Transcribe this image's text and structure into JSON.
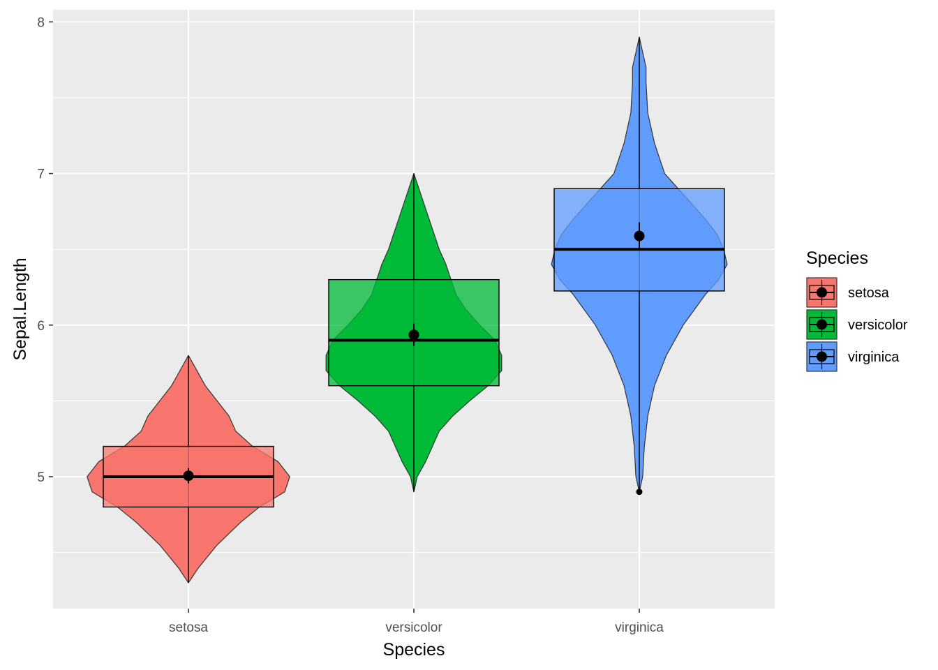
{
  "chart_data": {
    "type": "violin",
    "xlabel": "Species",
    "ylabel": "Sepal.Length",
    "categories": [
      "setosa",
      "versicolor",
      "virginica"
    ],
    "ylim": [
      4.13,
      8.08
    ],
    "y_ticks": [
      5,
      6,
      7,
      8
    ],
    "grid": true,
    "legend": {
      "title": "Species",
      "position": "right",
      "entries": [
        "setosa",
        "versicolor",
        "virginica"
      ]
    },
    "colors": {
      "setosa": "#F8766D",
      "versicolor": "#00BA38",
      "virginica": "#619CFF",
      "panel": "#EBEBEB",
      "grid": "#FFFFFF"
    },
    "series": [
      {
        "name": "setosa",
        "min": 4.3,
        "max": 5.8,
        "q1": 4.8,
        "median": 5.0,
        "q3": 5.2,
        "mean": 5.006,
        "mean_se_low": 4.956,
        "mean_se_high": 5.056,
        "density": [
          [
            4.3,
            0.0
          ],
          [
            4.4,
            0.06
          ],
          [
            4.55,
            0.17
          ],
          [
            4.7,
            0.31
          ],
          [
            4.8,
            0.42
          ],
          [
            4.9,
            0.57
          ],
          [
            5.0,
            0.6
          ],
          [
            5.1,
            0.53
          ],
          [
            5.2,
            0.38
          ],
          [
            5.3,
            0.28
          ],
          [
            5.4,
            0.24
          ],
          [
            5.5,
            0.17
          ],
          [
            5.6,
            0.1
          ],
          [
            5.7,
            0.05
          ],
          [
            5.8,
            0.0
          ]
        ]
      },
      {
        "name": "versicolor",
        "min": 4.9,
        "max": 7.0,
        "q1": 5.6,
        "median": 5.9,
        "q3": 6.3,
        "mean": 5.936,
        "mean_se_low": 5.863,
        "mean_se_high": 6.009,
        "density": [
          [
            4.9,
            0.0
          ],
          [
            5.0,
            0.02
          ],
          [
            5.1,
            0.07
          ],
          [
            5.2,
            0.11
          ],
          [
            5.3,
            0.15
          ],
          [
            5.4,
            0.23
          ],
          [
            5.5,
            0.33
          ],
          [
            5.6,
            0.44
          ],
          [
            5.7,
            0.52
          ],
          [
            5.8,
            0.52
          ],
          [
            5.9,
            0.48
          ],
          [
            6.0,
            0.39
          ],
          [
            6.1,
            0.31
          ],
          [
            6.2,
            0.25
          ],
          [
            6.3,
            0.22
          ],
          [
            6.4,
            0.19
          ],
          [
            6.5,
            0.15
          ],
          [
            6.6,
            0.12
          ],
          [
            6.7,
            0.09
          ],
          [
            6.8,
            0.06
          ],
          [
            6.9,
            0.03
          ],
          [
            7.0,
            0.0
          ]
        ]
      },
      {
        "name": "virginica",
        "min": 4.9,
        "max": 7.9,
        "q1": 6.225,
        "median": 6.5,
        "q3": 6.9,
        "mean": 6.588,
        "mean_se_low": 6.498,
        "mean_se_high": 6.678,
        "density": [
          [
            4.9,
            0.0
          ],
          [
            4.95,
            0.01
          ],
          [
            5.0,
            0.02
          ],
          [
            5.2,
            0.03
          ],
          [
            5.4,
            0.05
          ],
          [
            5.6,
            0.09
          ],
          [
            5.8,
            0.16
          ],
          [
            6.0,
            0.26
          ],
          [
            6.2,
            0.39
          ],
          [
            6.3,
            0.47
          ],
          [
            6.4,
            0.52
          ],
          [
            6.5,
            0.5
          ],
          [
            6.6,
            0.46
          ],
          [
            6.7,
            0.39
          ],
          [
            6.8,
            0.31
          ],
          [
            6.9,
            0.23
          ],
          [
            7.0,
            0.15
          ],
          [
            7.2,
            0.09
          ],
          [
            7.4,
            0.05
          ],
          [
            7.6,
            0.04
          ],
          [
            7.7,
            0.04
          ],
          [
            7.8,
            0.02
          ],
          [
            7.9,
            0.0
          ]
        ]
      }
    ],
    "outliers": [
      {
        "series": "virginica",
        "y": 4.9
      }
    ]
  }
}
